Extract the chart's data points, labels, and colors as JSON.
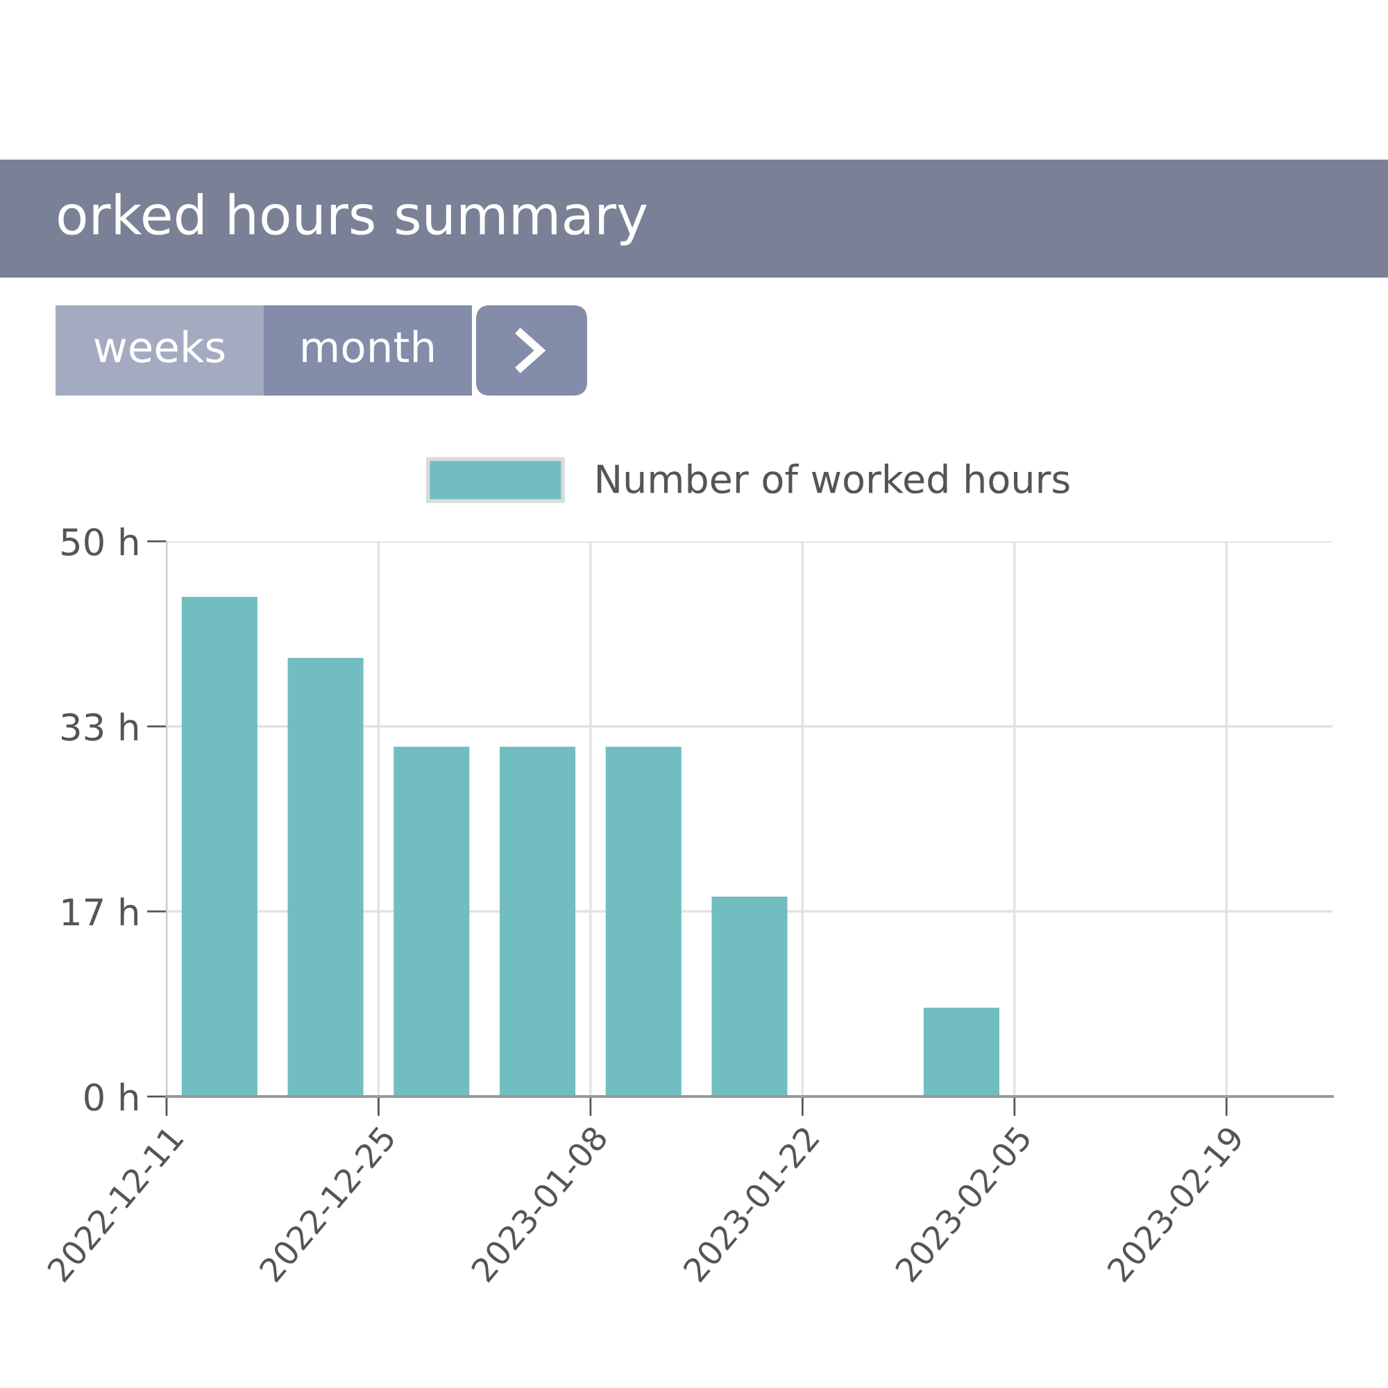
{
  "chart_data": {
    "type": "bar",
    "title": "orked hours summary",
    "annotations": [
      "weeks",
      "month"
    ],
    "x": [
      "2022-12-14T12:00",
      "2022-12-21T12:00",
      "2022-12-28T12:00",
      "2023-01-04T12:00",
      "2023-01-11T12:00",
      "2023-01-18T12:00",
      "2023-01-25T12:00",
      "2023-02-01T12:00"
    ],
    "series": [
      {
        "name": "Number of worked hours",
        "color": "#72bdbf",
        "values": [
          45,
          39.5,
          31.5,
          31.5,
          31.5,
          18,
          null,
          8
        ]
      }
    ],
    "xlim": [
      "2022-12-11",
      "2023-02-26"
    ],
    "xticks": [
      "2022-12-11",
      "2022-12-25",
      "2023-01-08",
      "2023-01-22",
      "2023-02-05",
      "2023-02-19"
    ],
    "ylim": [
      0,
      50
    ],
    "yticks": [
      {
        "value": 0,
        "label": "0 h"
      },
      {
        "value": 16.67,
        "label": "17 h"
      },
      {
        "value": 33.33,
        "label": "33 h"
      },
      {
        "value": 50,
        "label": "50 h"
      }
    ],
    "grid": true,
    "legend": "top"
  }
}
